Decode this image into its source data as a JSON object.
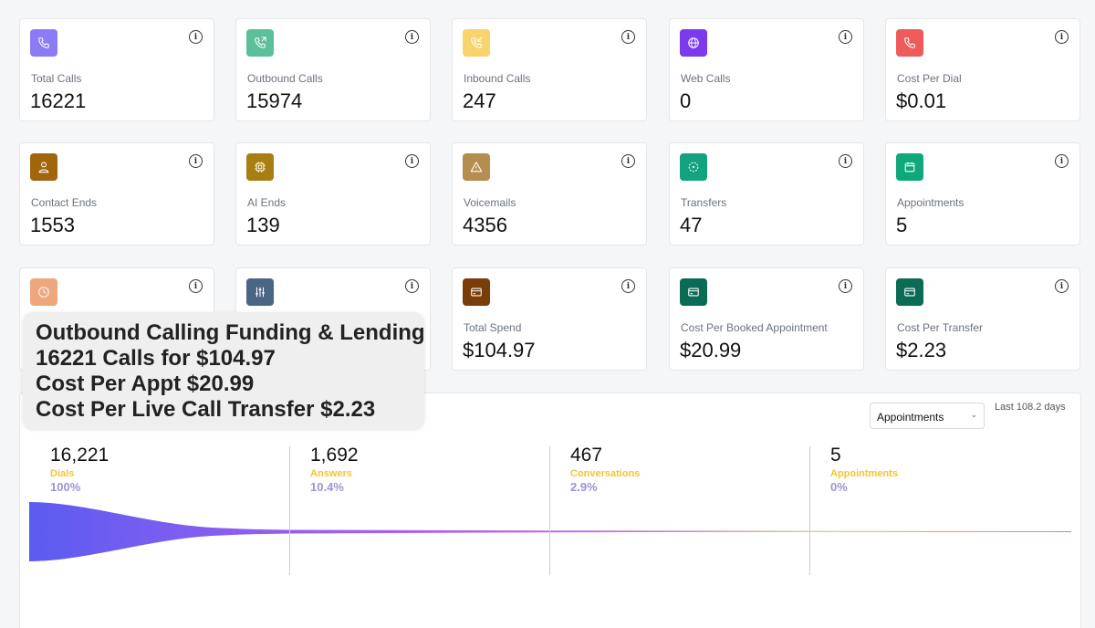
{
  "cards": [
    {
      "label": "Total Calls",
      "value": "16221",
      "icon": "phone-icon",
      "color": "#8b7cf6"
    },
    {
      "label": "Outbound Calls",
      "value": "15974",
      "icon": "phone-outgoing-icon",
      "color": "#5bbf9a"
    },
    {
      "label": "Inbound Calls",
      "value": "247",
      "icon": "phone-incoming-icon",
      "color": "#f9d36b"
    },
    {
      "label": "Web Calls",
      "value": "0",
      "icon": "globe-icon",
      "color": "#7c3aed"
    },
    {
      "label": "Cost Per Dial",
      "value": "$0.01",
      "icon": "phone-icon",
      "color": "#ef5b5b"
    },
    {
      "label": "Contact Ends",
      "value": "1553",
      "icon": "user-icon",
      "color": "#a0650d"
    },
    {
      "label": "AI Ends",
      "value": "139",
      "icon": "cpu-icon",
      "color": "#a87e12"
    },
    {
      "label": "Voicemails",
      "value": "4356",
      "icon": "warning-icon",
      "color": "#b58d4e"
    },
    {
      "label": "Transfers",
      "value": "47",
      "icon": "transfer-icon",
      "color": "#14a37f"
    },
    {
      "label": "Appointments",
      "value": "5",
      "icon": "calendar-icon",
      "color": "#0fa87a"
    },
    {
      "label": "",
      "value": "",
      "icon": "clock-icon",
      "color": "#eea67d"
    },
    {
      "label": "",
      "value": "",
      "icon": "sliders-icon",
      "color": "#4b6584"
    },
    {
      "label": "Total Spend",
      "value": "$104.97",
      "icon": "credit-card-icon",
      "color": "#7a3c08"
    },
    {
      "label": "Cost Per Booked Appointment",
      "value": "$20.99",
      "icon": "credit-card-icon",
      "color": "#0b6b55"
    },
    {
      "label": "Cost Per Transfer",
      "value": "$2.23",
      "icon": "credit-card-icon",
      "color": "#0b6b55"
    }
  ],
  "info_glyph": "i",
  "funnel": {
    "selector": "Appointments",
    "range": "Last 108.2 days",
    "stages": [
      {
        "value": "16,221",
        "name": "Dials",
        "pct": "100%"
      },
      {
        "value": "1,692",
        "name": "Answers",
        "pct": "10.4%"
      },
      {
        "value": "467",
        "name": "Conversations",
        "pct": "2.9%"
      },
      {
        "value": "5",
        "name": "Appointments",
        "pct": "0%"
      }
    ]
  },
  "overlay": {
    "line1": "Outbound Calling Funding & Lending",
    "line2": "16221 Calls for $104.97",
    "line3": "Cost Per Appt $20.99",
    "line4": "Cost Per Live Call Transfer $2.23"
  }
}
